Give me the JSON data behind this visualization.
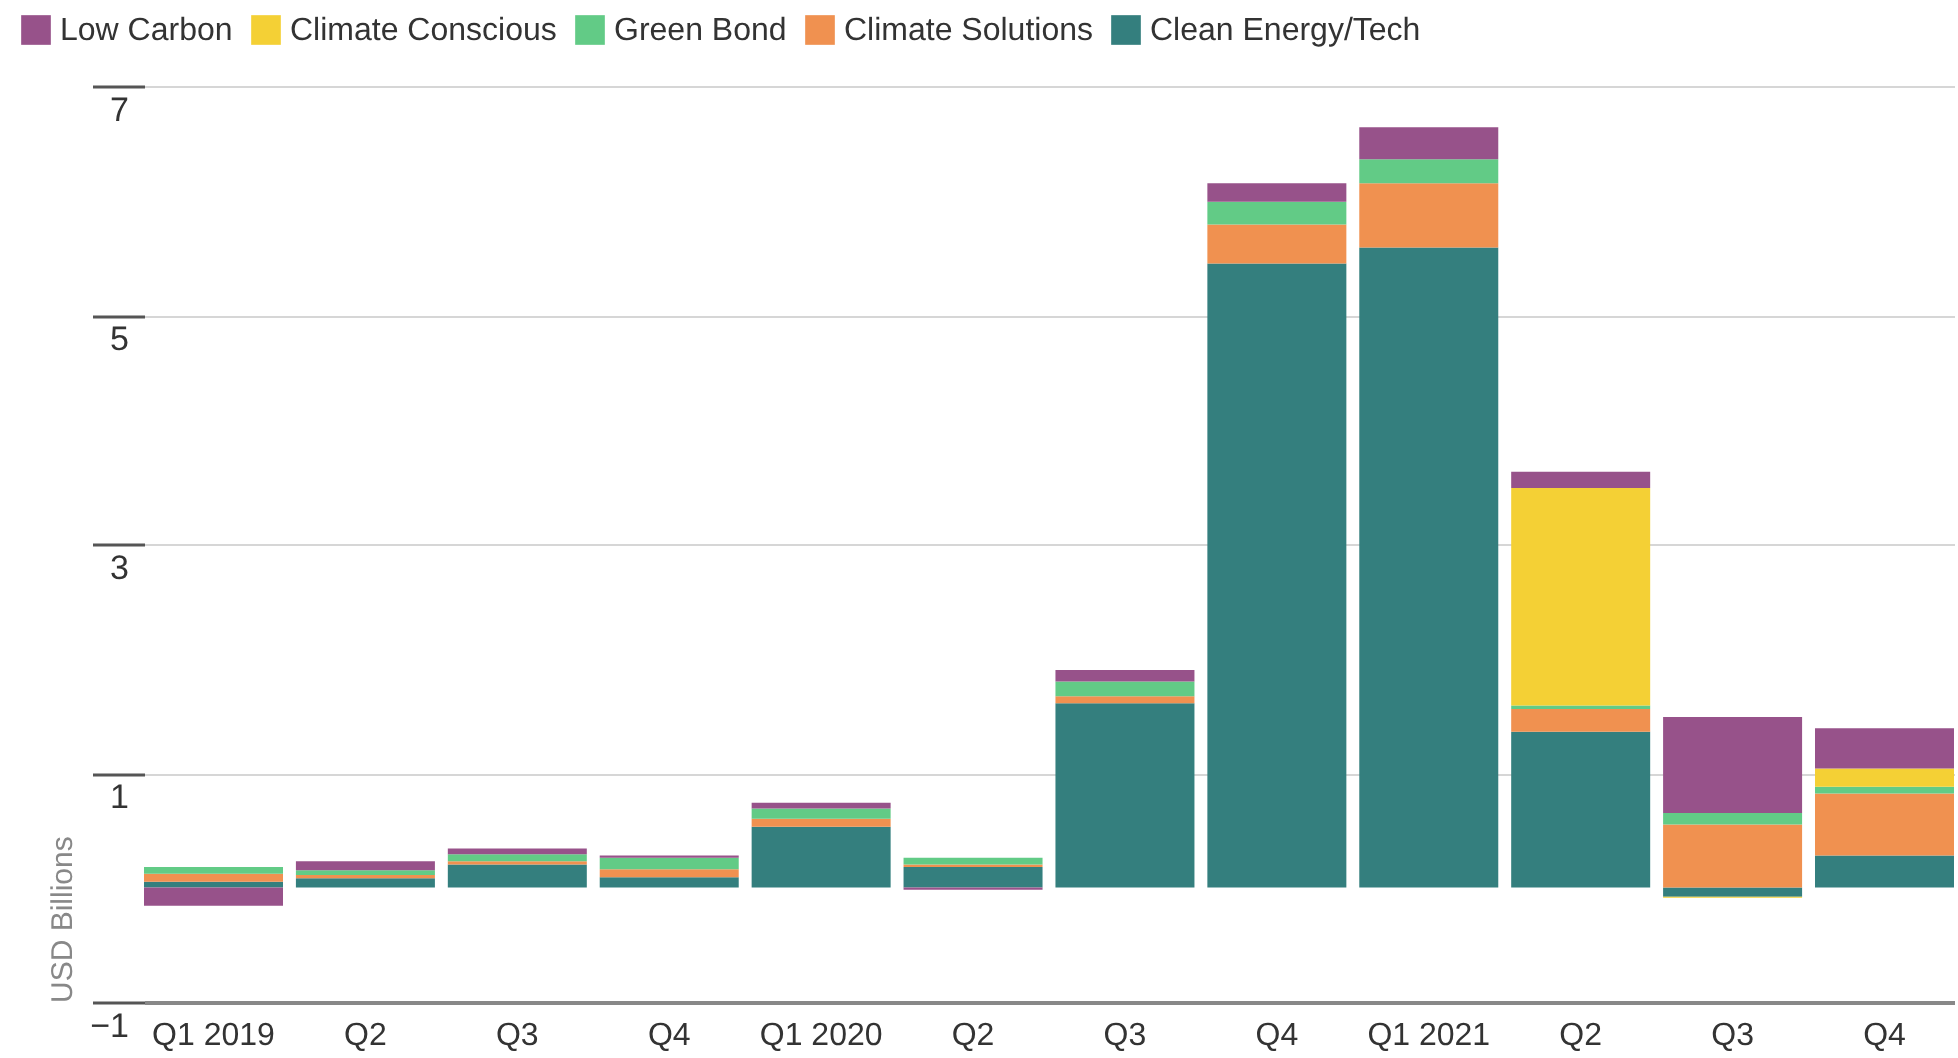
{
  "chart_data": {
    "type": "bar",
    "stacked": true,
    "ylabel": "USD Billions",
    "categories": [
      "Q1 2019",
      "Q2",
      "Q3",
      "Q4",
      "Q1 2020",
      "Q2",
      "Q3",
      "Q4",
      "Q1 2021",
      "Q2",
      "Q3",
      "Q4"
    ],
    "series": [
      {
        "name": "Clean Energy/Tech",
        "color": "#347f7e",
        "values": [
          0.05,
          0.08,
          0.2,
          0.09,
          0.53,
          0.18,
          1.61,
          5.45,
          5.59,
          1.36,
          -0.08,
          0.28
        ]
      },
      {
        "name": "Climate Solutions",
        "color": "#f09150",
        "values": [
          0.07,
          0.03,
          0.03,
          0.07,
          0.07,
          0.02,
          0.06,
          0.34,
          0.56,
          0.2,
          0.55,
          0.54
        ]
      },
      {
        "name": "Green Bond",
        "color": "#62cb86",
        "values": [
          0.06,
          0.04,
          0.06,
          0.1,
          0.09,
          0.06,
          0.13,
          0.2,
          0.21,
          0.03,
          0.1,
          0.06
        ]
      },
      {
        "name": "Climate Conscious",
        "color": "#f4d035",
        "values": [
          null,
          null,
          null,
          null,
          null,
          null,
          null,
          null,
          null,
          1.9,
          -0.01,
          0.16
        ]
      },
      {
        "name": "Low Carbon",
        "color": "#97528a",
        "values": [
          -0.16,
          0.08,
          0.05,
          0.02,
          0.05,
          -0.02,
          0.1,
          0.16,
          0.28,
          0.14,
          0.84,
          0.35
        ]
      }
    ],
    "ylim": [
      -1,
      7
    ],
    "yticks": [
      -1,
      1,
      3,
      5,
      7
    ],
    "grid": "y",
    "legend": "top left"
  }
}
